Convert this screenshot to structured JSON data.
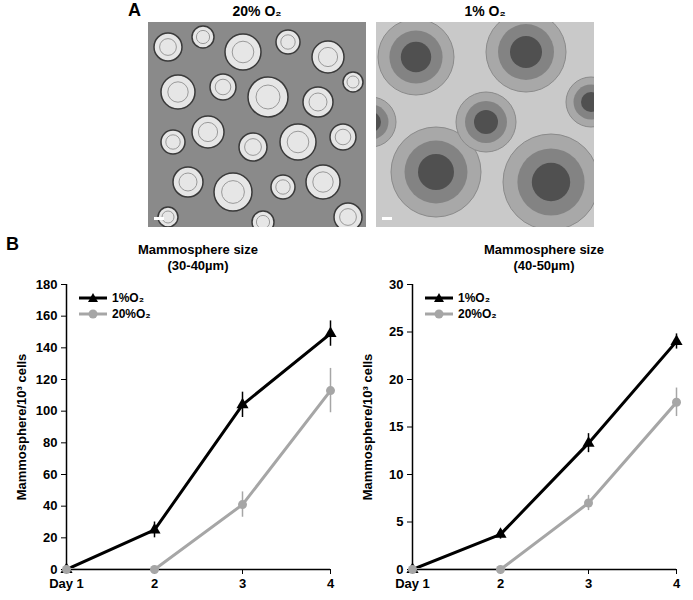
{
  "figure": {
    "panel_labels": [
      "A",
      "B"
    ],
    "images": [
      {
        "title": "20% O₂"
      },
      {
        "title": "1% O₂"
      }
    ]
  },
  "chart_data": [
    {
      "type": "line",
      "title": "Mammosphere size",
      "subtitle": "(30-40µm)",
      "ylabel": "Mammosphere/10³ cells",
      "categories": [
        "Day 1",
        "2",
        "3",
        "4"
      ],
      "ylim": [
        0,
        180
      ],
      "yticks": [
        0,
        20,
        40,
        60,
        80,
        100,
        120,
        140,
        160,
        180
      ],
      "legend": "upper left",
      "series": [
        {
          "name": "1%O₂",
          "color": "#000000",
          "marker": "triangle",
          "line_style": "solid",
          "values": [
            0,
            25,
            104,
            149
          ],
          "errors": [
            0,
            5,
            8,
            8
          ]
        },
        {
          "name": "20%O₂",
          "color": "#a6a6a6",
          "marker": "circle",
          "line_style": "solid",
          "values": [
            0,
            0,
            41,
            113
          ],
          "errors": [
            0,
            0,
            8,
            14
          ]
        }
      ]
    },
    {
      "type": "line",
      "title": "Mammosphere size",
      "subtitle": "(40-50µm)",
      "ylabel": "Mammosphere/10³ cells",
      "categories": [
        "Day 1",
        "2",
        "3",
        "4"
      ],
      "ylim": [
        0,
        30
      ],
      "yticks": [
        0,
        5,
        10,
        15,
        20,
        25,
        30
      ],
      "legend": "upper left",
      "series": [
        {
          "name": "1%O₂",
          "color": "#000000",
          "marker": "triangle",
          "line_style": "solid",
          "values": [
            0,
            3.7,
            13.3,
            24
          ],
          "errors": [
            0,
            0.5,
            1,
            0.8
          ]
        },
        {
          "name": "20%O₂",
          "color": "#a6a6a6",
          "marker": "circle",
          "line_style": "solid",
          "values": [
            0,
            0,
            7,
            17.6
          ],
          "errors": [
            0,
            0,
            0.8,
            1.5
          ]
        }
      ]
    }
  ]
}
